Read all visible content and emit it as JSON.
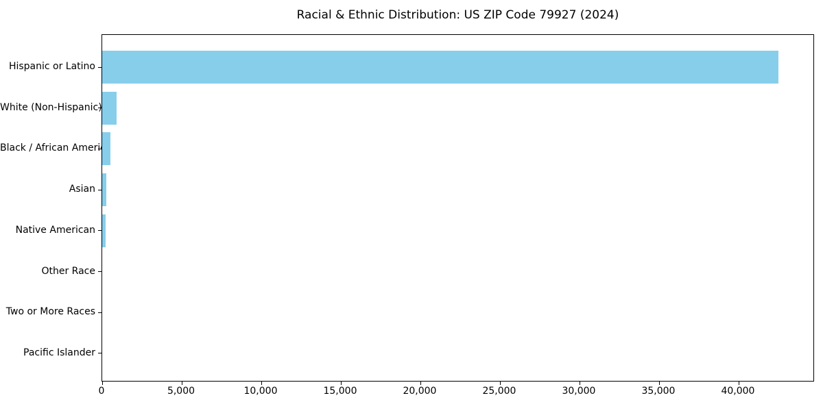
{
  "chart_data": {
    "type": "bar",
    "orientation": "horizontal",
    "title": "Racial & Ethnic Distribution: US ZIP Code 79927 (2024)",
    "categories": [
      "Hispanic or Latino",
      "White (Non-Hispanic)",
      "Black / African American",
      "Asian",
      "Native American",
      "Other Race",
      "Two or More Races",
      "Pacific Islander"
    ],
    "values": [
      42500,
      900,
      530,
      260,
      200,
      0,
      0,
      0
    ],
    "xlabel": "",
    "ylabel": "",
    "xlim": [
      0,
      44700
    ],
    "xticks": [
      0,
      5000,
      10000,
      15000,
      20000,
      25000,
      30000,
      35000,
      40000
    ],
    "xtick_labels": [
      "0",
      "5,000",
      "10,000",
      "15,000",
      "20,000",
      "25,000",
      "30,000",
      "35,000",
      "40,000"
    ],
    "bar_color": "#87CEEB",
    "axis_color": "#000000",
    "background_color": "#FFFFFF",
    "grid": false,
    "legend": "none"
  }
}
